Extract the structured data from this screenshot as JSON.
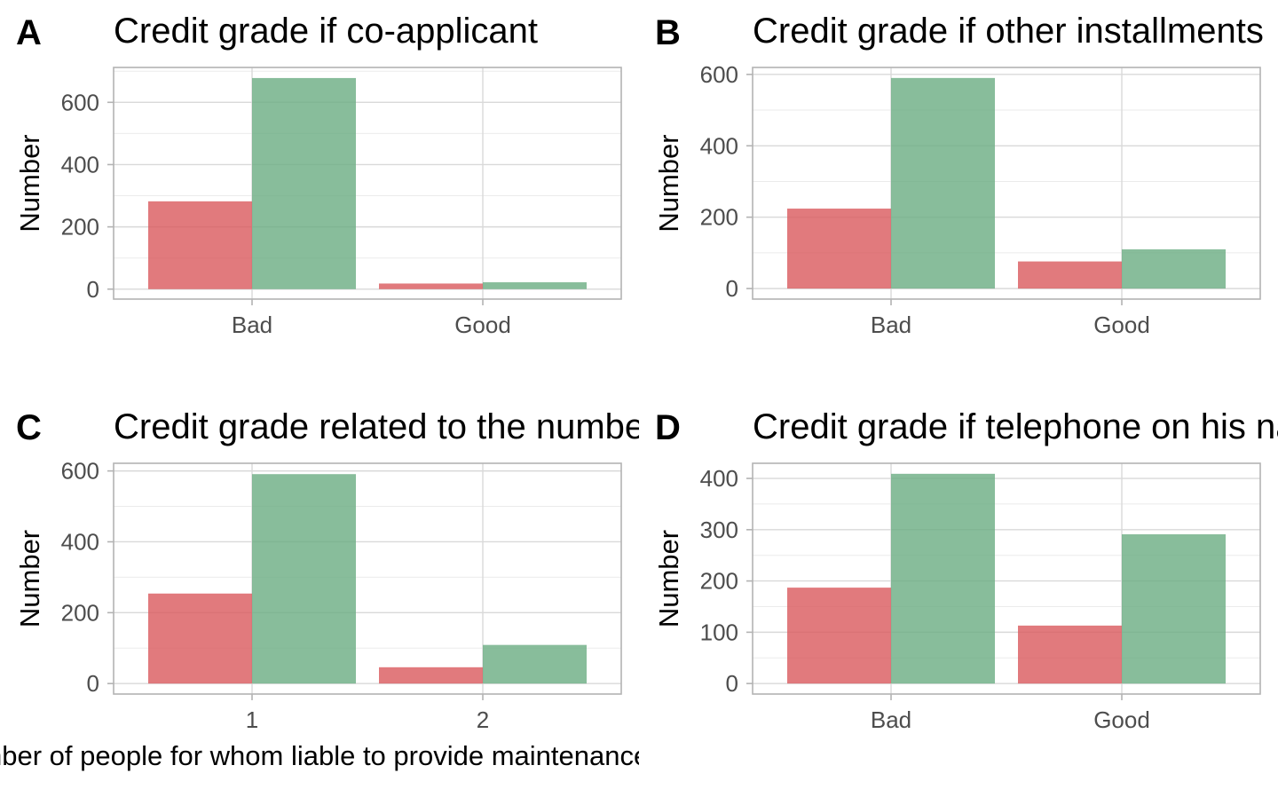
{
  "chart_data": [
    {
      "panel_label": "A",
      "type": "bar",
      "title": "Credit grade if co-applicant",
      "xlabel": "",
      "ylabel": "Number",
      "categories": [
        "Bad",
        "Good"
      ],
      "series": [
        {
          "color": "#d9595c",
          "values": [
            282,
            18
          ]
        },
        {
          "color": "#6aad82",
          "values": [
            678,
            22
          ]
        }
      ],
      "ylim": [
        -32,
        712
      ],
      "yticks": [
        0,
        200,
        400,
        600
      ],
      "yticks_minor": [
        100,
        300,
        500,
        700
      ]
    },
    {
      "panel_label": "B",
      "type": "bar",
      "title": "Credit grade if other installments",
      "xlabel": "",
      "ylabel": "Number",
      "categories": [
        "Bad",
        "Good"
      ],
      "series": [
        {
          "color": "#d9595c",
          "values": [
            224,
            76
          ]
        },
        {
          "color": "#6aad82",
          "values": [
            590,
            110
          ]
        }
      ],
      "ylim": [
        -29.5,
        619.5
      ],
      "yticks": [
        0,
        200,
        400,
        600
      ],
      "yticks_minor": [
        100,
        300,
        500
      ]
    },
    {
      "panel_label": "C",
      "type": "bar",
      "title": "Credit grade related to the number of people for whom liable to provide maintenance",
      "xlabel": "Number of people for whom liable to provide maintenance",
      "ylabel": "Number",
      "categories": [
        "1",
        "2"
      ],
      "series": [
        {
          "color": "#d9595c",
          "values": [
            254,
            46
          ]
        },
        {
          "color": "#6aad82",
          "values": [
            591,
            109
          ]
        }
      ],
      "ylim": [
        -29.6,
        621.6
      ],
      "yticks": [
        0,
        200,
        400,
        600
      ],
      "yticks_minor": [
        100,
        300,
        500
      ]
    },
    {
      "panel_label": "D",
      "type": "bar",
      "title": "Credit grade if telephone on his name",
      "xlabel": "",
      "ylabel": "Number",
      "categories": [
        "Bad",
        "Good"
      ],
      "series": [
        {
          "color": "#d9595c",
          "values": [
            187,
            113
          ]
        },
        {
          "color": "#6aad82",
          "values": [
            409,
            291
          ]
        }
      ],
      "ylim": [
        -20.5,
        429.5
      ],
      "yticks": [
        0,
        100,
        200,
        300,
        400
      ],
      "yticks_minor": [
        50,
        150,
        250,
        350
      ]
    }
  ],
  "colors": {
    "bad_grade": "#d9595c",
    "good_grade": "#6aad82"
  }
}
